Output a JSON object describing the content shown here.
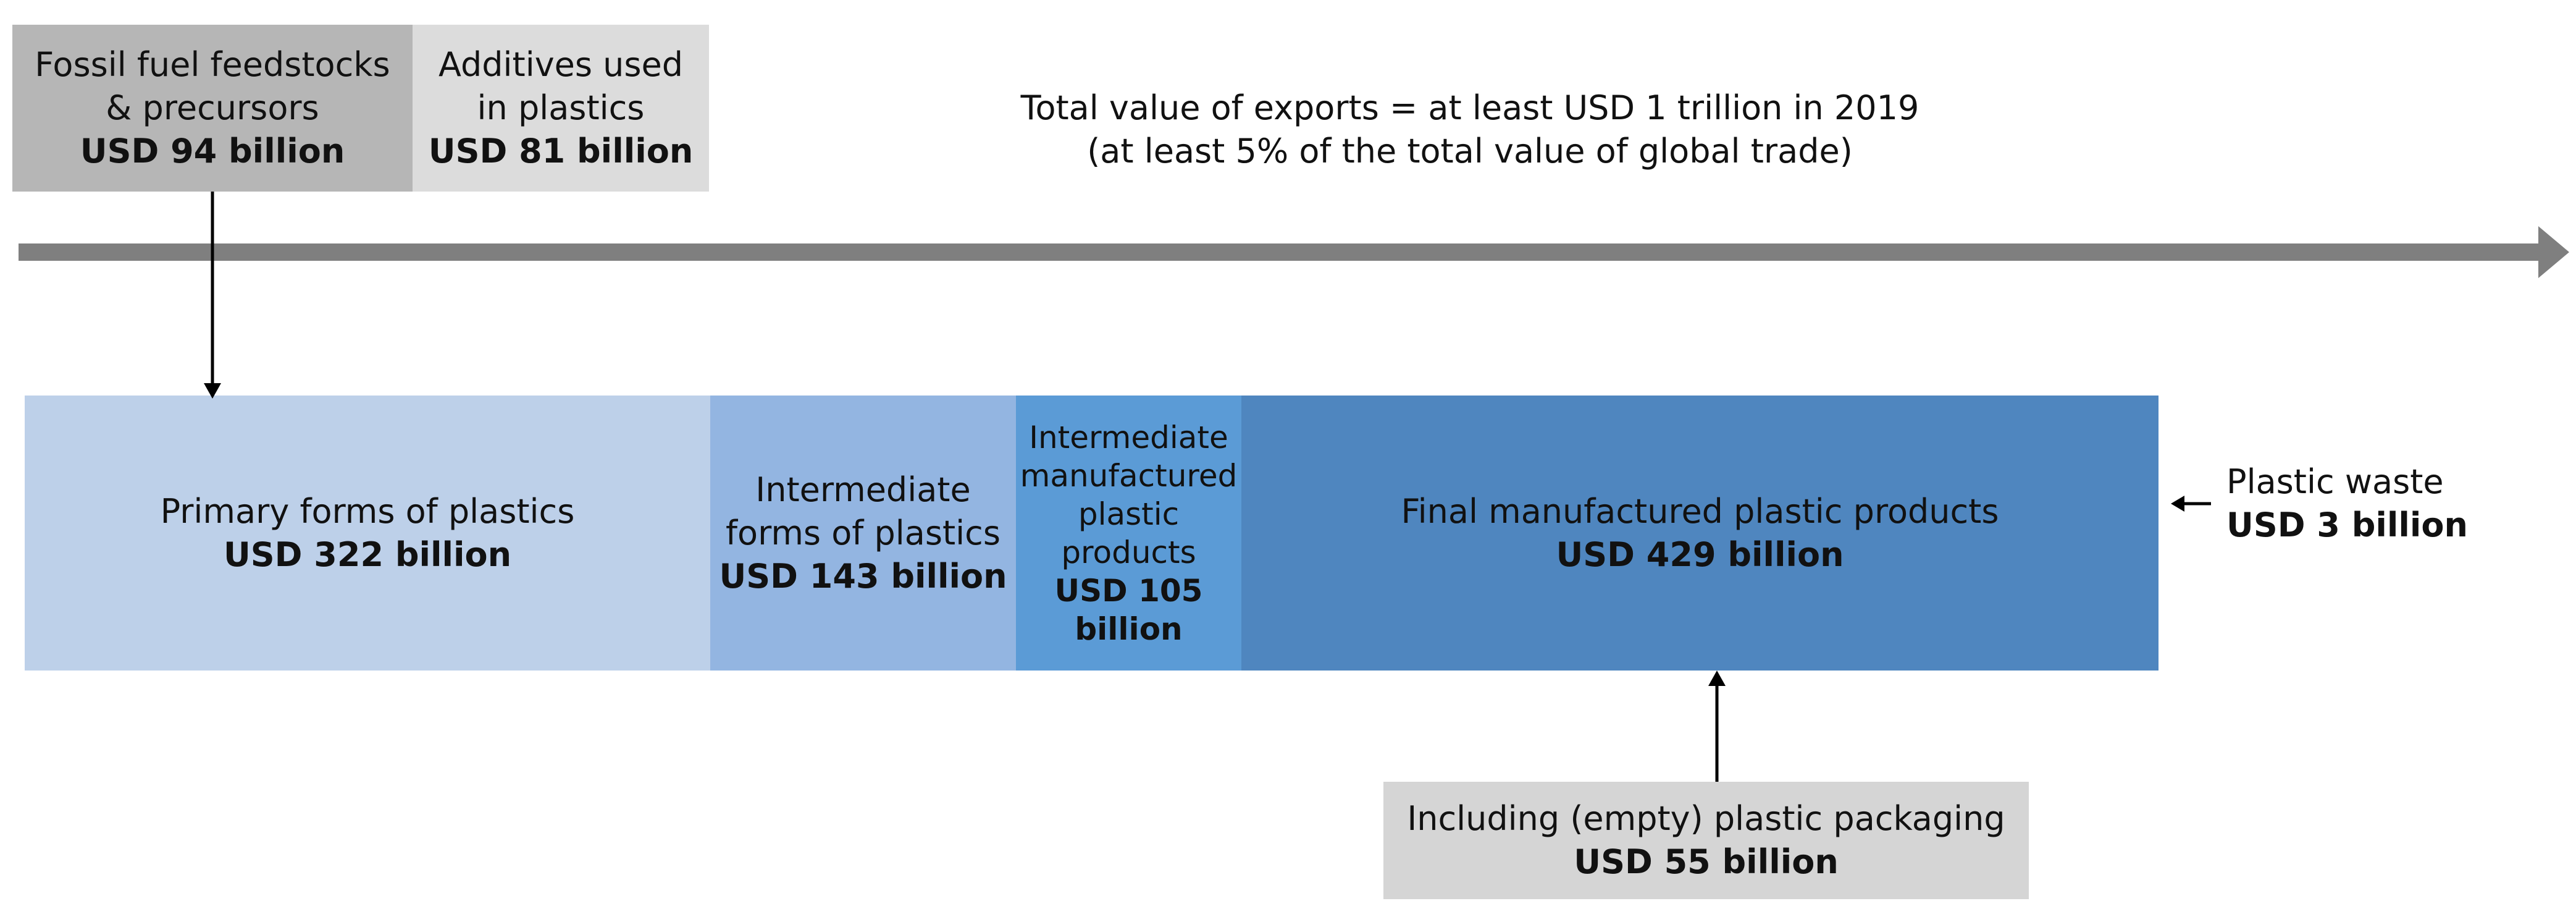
{
  "colors": {
    "dark_grey_box": "#b6b6b6",
    "light_grey_box": "#dcdcdc",
    "packaging_box": "#d5d5d5",
    "timeline_arrow": "#7f7f7f",
    "primary_forms": "#bdd0e9",
    "intermediate_forms": "#93b5e1",
    "intermediate_products": "#5b9bd6",
    "final_products": "#4f86bf",
    "arrow": "#000000"
  },
  "inputs": {
    "fossil_fuel": {
      "line1": "Fossil fuel feedstocks",
      "line2": "& precursors",
      "value": "USD 94 billion"
    },
    "additives": {
      "line1": "Additives used",
      "line2": "in plastics",
      "value": "USD 81 billion"
    }
  },
  "total_exports": {
    "line1": "Total value of exports = at least USD 1 trillion in 2019",
    "line2": "(at least 5% of the total value of global trade)"
  },
  "stages": [
    {
      "id": "primary",
      "lines": [
        "Primary forms of plastics"
      ],
      "value_lines": [
        "USD 322 billion"
      ]
    },
    {
      "id": "intermediate-forms",
      "lines": [
        "Intermediate",
        "forms of plastics"
      ],
      "value_lines": [
        "USD 143 billion"
      ]
    },
    {
      "id": "intermediate-products",
      "lines": [
        "Intermediate",
        "manufactured",
        "plastic",
        "products"
      ],
      "value_lines": [
        "USD 105",
        "billion"
      ]
    },
    {
      "id": "final",
      "lines": [
        "Final manufactured plastic products"
      ],
      "value_lines": [
        "USD 429 billion"
      ]
    }
  ],
  "plastic_waste": {
    "label": "Plastic waste",
    "value": "USD 3 billion"
  },
  "packaging": {
    "label": "Including (empty) plastic packaging",
    "value": "USD 55 billion"
  }
}
